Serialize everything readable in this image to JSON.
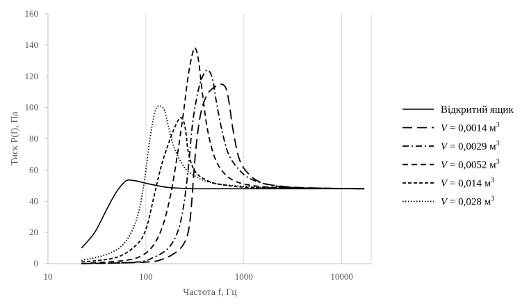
{
  "chart_data": {
    "type": "line",
    "xscale": "log",
    "xlabel": "Частота f, Гц",
    "ylabel": "Тиск P(f), Па",
    "xlim": [
      10,
      20000
    ],
    "ylim": [
      0,
      160
    ],
    "xticks": [
      "10",
      "100",
      "1000",
      "10000"
    ],
    "yticks": [
      "0",
      "20",
      "40",
      "60",
      "80",
      "100",
      "120",
      "140",
      "160"
    ],
    "xgrid": true,
    "ygrid": false,
    "legend_position": "right",
    "series": [
      {
        "name": "Відкритий ящик",
        "label_parts": [
          "Відкритий ящик"
        ],
        "dash": "",
        "x": [
          22,
          30,
          40,
          50,
          60,
          65,
          70,
          80,
          100,
          130,
          160,
          200,
          300,
          500,
          1000,
          3000,
          17000
        ],
        "y": [
          10,
          20,
          35,
          46,
          52,
          53.5,
          53.5,
          53,
          51.5,
          50,
          49,
          48.5,
          48,
          48,
          48,
          48,
          48
        ]
      },
      {
        "name": "V = 0,0014 м3",
        "label_parts": [
          "V",
          " = 0,0014 м",
          "3"
        ],
        "dash": "14,7",
        "x": [
          22,
          100,
          150,
          200,
          240,
          270,
          290,
          320,
          360,
          420,
          500,
          580,
          650,
          700,
          780,
          900,
          1100,
          1500,
          2500,
          5000,
          17000
        ],
        "y": [
          0,
          1,
          3,
          7,
          12,
          20,
          35,
          70,
          95,
          108,
          113,
          115,
          113,
          105,
          85,
          67,
          58,
          52,
          49.5,
          48.5,
          48
        ]
      },
      {
        "name": "V = 0,0029 м3",
        "label_parts": [
          "V",
          " = 0,0029 м",
          "3"
        ],
        "dash": "9,4,2,4",
        "x": [
          22,
          80,
          120,
          170,
          210,
          240,
          270,
          300,
          340,
          380,
          430,
          480,
          530,
          600,
          700,
          900,
          1200,
          2000,
          4000,
          17000
        ],
        "y": [
          0,
          1,
          4,
          10,
          20,
          35,
          60,
          90,
          110,
          120,
          124,
          118,
          102,
          85,
          70,
          60,
          54,
          50,
          48.5,
          48
        ]
      },
      {
        "name": "V = 0,0052 м3",
        "label_parts": [
          "V",
          " = 0,0052 м",
          "3"
        ],
        "dash": "8,5",
        "x": [
          22,
          60,
          90,
          120,
          150,
          180,
          210,
          240,
          270,
          300,
          320,
          345,
          380,
          420,
          480,
          550,
          650,
          800,
          1100,
          1800,
          4000,
          17000
        ],
        "y": [
          0,
          2,
          5,
          12,
          25,
          45,
          70,
          95,
          120,
          135,
          138,
          130,
          108,
          88,
          72,
          63,
          57,
          53,
          50.5,
          49,
          48.5,
          48
        ]
      },
      {
        "name": "V = 0,014 м3",
        "label_parts": [
          "V",
          " = 0,014 м",
          "3"
        ],
        "dash": "5,3",
        "x": [
          22,
          50,
          80,
          100,
          120,
          140,
          160,
          190,
          220,
          240,
          255,
          270,
          300,
          340,
          400,
          500,
          700,
          1000,
          2000,
          17000
        ],
        "y": [
          1,
          4,
          12,
          22,
          42,
          60,
          72,
          85,
          93,
          92,
          85,
          72,
          62,
          57,
          54,
          51.5,
          50,
          49,
          48.5,
          48
        ]
      },
      {
        "name": "V = 0,028 м3",
        "label_parts": [
          "V",
          " = 0,028 м",
          "3"
        ],
        "dash": "1.5,2.5",
        "x": [
          22,
          40,
          60,
          80,
          95,
          110,
          125,
          140,
          155,
          170,
          190,
          220,
          260,
          320,
          400,
          550,
          800,
          1500,
          3000,
          17000
        ],
        "y": [
          2,
          6,
          13,
          28,
          50,
          80,
          98,
          101,
          98,
          88,
          76,
          67,
          60,
          56,
          53,
          51,
          50,
          49,
          48.5,
          48
        ]
      }
    ]
  }
}
